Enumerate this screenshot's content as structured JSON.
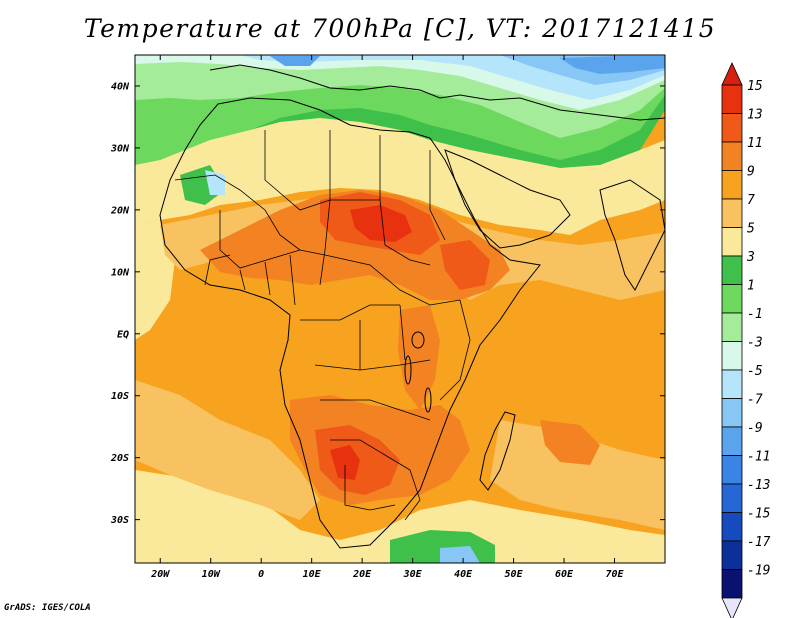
{
  "title": "Temperature at 700hPa [C], VT: 2017121415",
  "footer": "GrADS: IGES/COLA",
  "map": {
    "region": "Africa",
    "projection": "latlon",
    "lon_range": [
      -25,
      80
    ],
    "lat_range": [
      -37,
      45
    ],
    "lon_ticks": [
      {
        "value": -20,
        "label": "20W"
      },
      {
        "value": -10,
        "label": "10W"
      },
      {
        "value": 0,
        "label": "0"
      },
      {
        "value": 10,
        "label": "10E"
      },
      {
        "value": 20,
        "label": "20E"
      },
      {
        "value": 30,
        "label": "30E"
      },
      {
        "value": 40,
        "label": "40E"
      },
      {
        "value": 50,
        "label": "50E"
      },
      {
        "value": 60,
        "label": "60E"
      },
      {
        "value": 70,
        "label": "70E"
      }
    ],
    "lat_ticks": [
      {
        "value": 40,
        "label": "40N"
      },
      {
        "value": 30,
        "label": "30N"
      },
      {
        "value": 20,
        "label": "20N"
      },
      {
        "value": 10,
        "label": "10N"
      },
      {
        "value": 0,
        "label": "EQ"
      },
      {
        "value": -10,
        "label": "10S"
      },
      {
        "value": -20,
        "label": "20S"
      },
      {
        "value": -30,
        "label": "30S"
      }
    ]
  },
  "colorbar": {
    "triangle_top_color": "#d81f10",
    "triangle_bottom_color": "#e6e6ff",
    "segments": [
      {
        "label": "15",
        "color": "#e8320f"
      },
      {
        "label": "13",
        "color": "#f05a18"
      },
      {
        "label": "11",
        "color": "#f28222"
      },
      {
        "label": "9",
        "color": "#f7a31f"
      },
      {
        "label": "7",
        "color": "#f8c260"
      },
      {
        "label": "5",
        "color": "#fbe99b"
      },
      {
        "label": "3",
        "color": "#3ec04a"
      },
      {
        "label": "1",
        "color": "#6cd85e"
      },
      {
        "label": "-1",
        "color": "#a5ec9a"
      },
      {
        "label": "-3",
        "color": "#d8f8ea"
      },
      {
        "label": "-5",
        "color": "#b5e5fa"
      },
      {
        "label": "-7",
        "color": "#87c6f5"
      },
      {
        "label": "-9",
        "color": "#5aa4ee"
      },
      {
        "label": "-11",
        "color": "#3a84e6"
      },
      {
        "label": "-13",
        "color": "#2567d6"
      },
      {
        "label": "-15",
        "color": "#154bbe"
      },
      {
        "label": "-17",
        "color": "#0d2f9a"
      },
      {
        "label": "-19",
        "color": "#0a1270"
      }
    ]
  }
}
